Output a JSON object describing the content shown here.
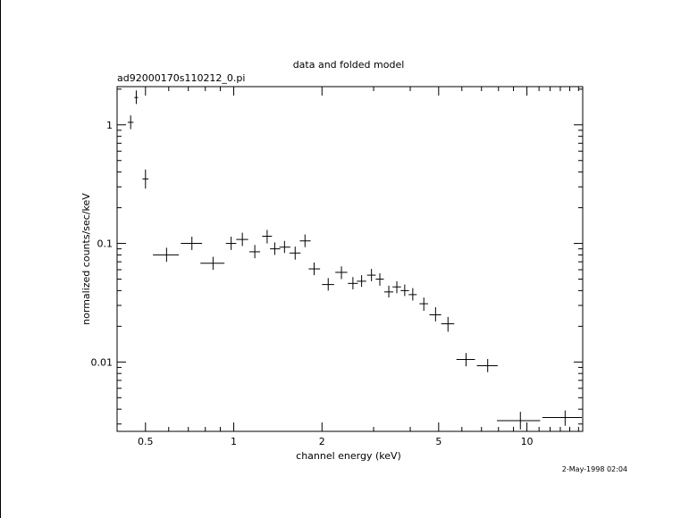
{
  "chart_data": {
    "type": "scatter",
    "title": "data and folded model",
    "subtitle": "ad92000170s110212_0.pi",
    "xlabel": "channel energy (keV)",
    "ylabel": "normalized counts/sec/keV",
    "timestamp": "2-May-1998 02:04",
    "x_scale": "log",
    "y_scale": "log",
    "xlim": [
      0.4,
      15.5
    ],
    "ylim": [
      0.0026,
      2.1
    ],
    "x_ticks": [
      {
        "value": 0.5,
        "label": "0.5"
      },
      {
        "value": 1,
        "label": "1"
      },
      {
        "value": 2,
        "label": "2"
      },
      {
        "value": 5,
        "label": "5"
      },
      {
        "value": 10,
        "label": "10"
      }
    ],
    "y_ticks": [
      {
        "value": 0.01,
        "label": "0.01"
      },
      {
        "value": 0.1,
        "label": "0.1"
      },
      {
        "value": 1,
        "label": "1"
      }
    ],
    "grid": false,
    "points": [
      {
        "x": 0.445,
        "xlo": 0.435,
        "xhi": 0.455,
        "y": 1.05,
        "ylo": 0.92,
        "yhi": 1.2
      },
      {
        "x": 0.465,
        "xlo": 0.458,
        "xhi": 0.472,
        "y": 1.7,
        "ylo": 1.5,
        "yhi": 1.95
      },
      {
        "x": 0.5,
        "xlo": 0.488,
        "xhi": 0.512,
        "y": 0.35,
        "ylo": 0.29,
        "yhi": 0.42
      },
      {
        "x": 0.59,
        "xlo": 0.53,
        "xhi": 0.65,
        "y": 0.08,
        "ylo": 0.07,
        "yhi": 0.092
      },
      {
        "x": 0.72,
        "xlo": 0.66,
        "xhi": 0.78,
        "y": 0.1,
        "ylo": 0.088,
        "yhi": 0.114
      },
      {
        "x": 0.85,
        "xlo": 0.77,
        "xhi": 0.93,
        "y": 0.068,
        "ylo": 0.06,
        "yhi": 0.077
      },
      {
        "x": 0.98,
        "xlo": 0.94,
        "xhi": 1.02,
        "y": 0.1,
        "ylo": 0.088,
        "yhi": 0.114
      },
      {
        "x": 1.07,
        "xlo": 1.02,
        "xhi": 1.12,
        "y": 0.108,
        "ylo": 0.095,
        "yhi": 0.123
      },
      {
        "x": 1.18,
        "xlo": 1.13,
        "xhi": 1.23,
        "y": 0.085,
        "ylo": 0.075,
        "yhi": 0.097
      },
      {
        "x": 1.3,
        "xlo": 1.25,
        "xhi": 1.35,
        "y": 0.115,
        "ylo": 0.1,
        "yhi": 0.13
      },
      {
        "x": 1.38,
        "xlo": 1.33,
        "xhi": 1.44,
        "y": 0.09,
        "ylo": 0.08,
        "yhi": 0.102
      },
      {
        "x": 1.49,
        "xlo": 1.43,
        "xhi": 1.56,
        "y": 0.093,
        "ylo": 0.083,
        "yhi": 0.105
      },
      {
        "x": 1.62,
        "xlo": 1.55,
        "xhi": 1.69,
        "y": 0.083,
        "ylo": 0.073,
        "yhi": 0.094
      },
      {
        "x": 1.75,
        "xlo": 1.68,
        "xhi": 1.83,
        "y": 0.105,
        "ylo": 0.093,
        "yhi": 0.119
      },
      {
        "x": 1.88,
        "xlo": 1.8,
        "xhi": 1.97,
        "y": 0.061,
        "ylo": 0.054,
        "yhi": 0.069
      },
      {
        "x": 2.1,
        "xlo": 2.0,
        "xhi": 2.2,
        "y": 0.045,
        "ylo": 0.04,
        "yhi": 0.051
      },
      {
        "x": 2.33,
        "xlo": 2.22,
        "xhi": 2.44,
        "y": 0.057,
        "ylo": 0.05,
        "yhi": 0.064
      },
      {
        "x": 2.55,
        "xlo": 2.45,
        "xhi": 2.65,
        "y": 0.046,
        "ylo": 0.041,
        "yhi": 0.052
      },
      {
        "x": 2.73,
        "xlo": 2.63,
        "xhi": 2.83,
        "y": 0.048,
        "ylo": 0.043,
        "yhi": 0.054
      },
      {
        "x": 2.95,
        "xlo": 2.85,
        "xhi": 3.05,
        "y": 0.054,
        "ylo": 0.048,
        "yhi": 0.061
      },
      {
        "x": 3.15,
        "xlo": 3.05,
        "xhi": 3.25,
        "y": 0.05,
        "ylo": 0.044,
        "yhi": 0.056
      },
      {
        "x": 3.38,
        "xlo": 3.26,
        "xhi": 3.5,
        "y": 0.039,
        "ylo": 0.035,
        "yhi": 0.044
      },
      {
        "x": 3.6,
        "xlo": 3.48,
        "xhi": 3.72,
        "y": 0.043,
        "ylo": 0.038,
        "yhi": 0.048
      },
      {
        "x": 3.83,
        "xlo": 3.71,
        "xhi": 3.96,
        "y": 0.04,
        "ylo": 0.036,
        "yhi": 0.045
      },
      {
        "x": 4.08,
        "xlo": 3.95,
        "xhi": 4.21,
        "y": 0.037,
        "ylo": 0.033,
        "yhi": 0.042
      },
      {
        "x": 4.45,
        "xlo": 4.3,
        "xhi": 4.6,
        "y": 0.031,
        "ylo": 0.027,
        "yhi": 0.035
      },
      {
        "x": 4.88,
        "xlo": 4.65,
        "xhi": 5.1,
        "y": 0.025,
        "ylo": 0.022,
        "yhi": 0.029
      },
      {
        "x": 5.38,
        "xlo": 5.1,
        "xhi": 5.65,
        "y": 0.021,
        "ylo": 0.018,
        "yhi": 0.024
      },
      {
        "x": 6.2,
        "xlo": 5.75,
        "xhi": 6.65,
        "y": 0.0105,
        "ylo": 0.0092,
        "yhi": 0.0119
      },
      {
        "x": 7.35,
        "xlo": 6.75,
        "xhi": 7.95,
        "y": 0.0093,
        "ylo": 0.0082,
        "yhi": 0.0106
      },
      {
        "x": 9.5,
        "xlo": 7.9,
        "xhi": 11.1,
        "y": 0.0032,
        "ylo": 0.0027,
        "yhi": 0.0038
      },
      {
        "x": 13.5,
        "xlo": 11.3,
        "xhi": 15.4,
        "y": 0.0034,
        "ylo": 0.0029,
        "yhi": 0.0039
      }
    ]
  }
}
